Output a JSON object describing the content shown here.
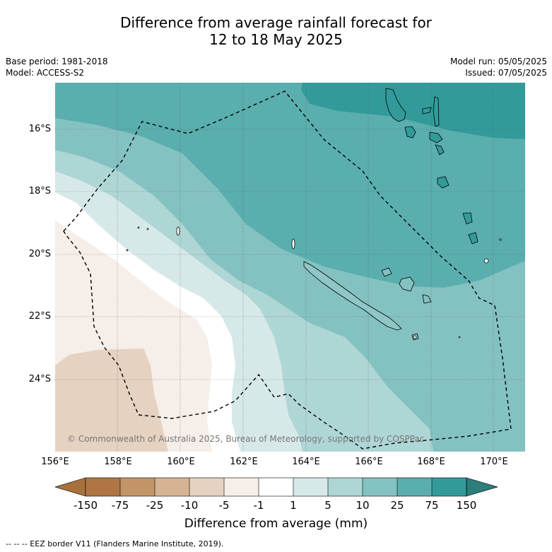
{
  "title": {
    "line1": "Difference from average rainfall forecast for",
    "line2": "12 to 18 May 2025"
  },
  "meta": {
    "base_period": "Base period: 1981-2018",
    "model": "Model: ACCESS-S2",
    "model_run": "Model run: 05/05/2025",
    "issued": "Issued: 07/05/2025"
  },
  "map": {
    "lat_labels": [
      "16°S",
      "18°S",
      "20°S",
      "22°S",
      "24°S"
    ],
    "lon_labels": [
      "156°E",
      "158°E",
      "160°E",
      "162°E",
      "164°E",
      "166°E",
      "168°E",
      "170°E"
    ],
    "copyright": "© Commonwealth of Australia 2025, Bureau of Meteorology, supported by COSPPac"
  },
  "colorbar": {
    "title": "Difference from average (mm)",
    "tick_labels": [
      "-150",
      "-75",
      "-25",
      "-10",
      "-5",
      "-1",
      "1",
      "5",
      "10",
      "25",
      "75",
      "150"
    ],
    "colors": [
      "#a8713c",
      "#af7643",
      "#c39467",
      "#d5b393",
      "#e6d2c1",
      "#f5eee9",
      "#ffffff",
      "#d6e9e8",
      "#aed6d5",
      "#84c2c1",
      "#5aaeae",
      "#329b9a",
      "#2d7d7a"
    ]
  },
  "footer": {
    "legend": "--  --  -- EEZ border V11 (Flanders Marine Institute, 2019)."
  }
}
